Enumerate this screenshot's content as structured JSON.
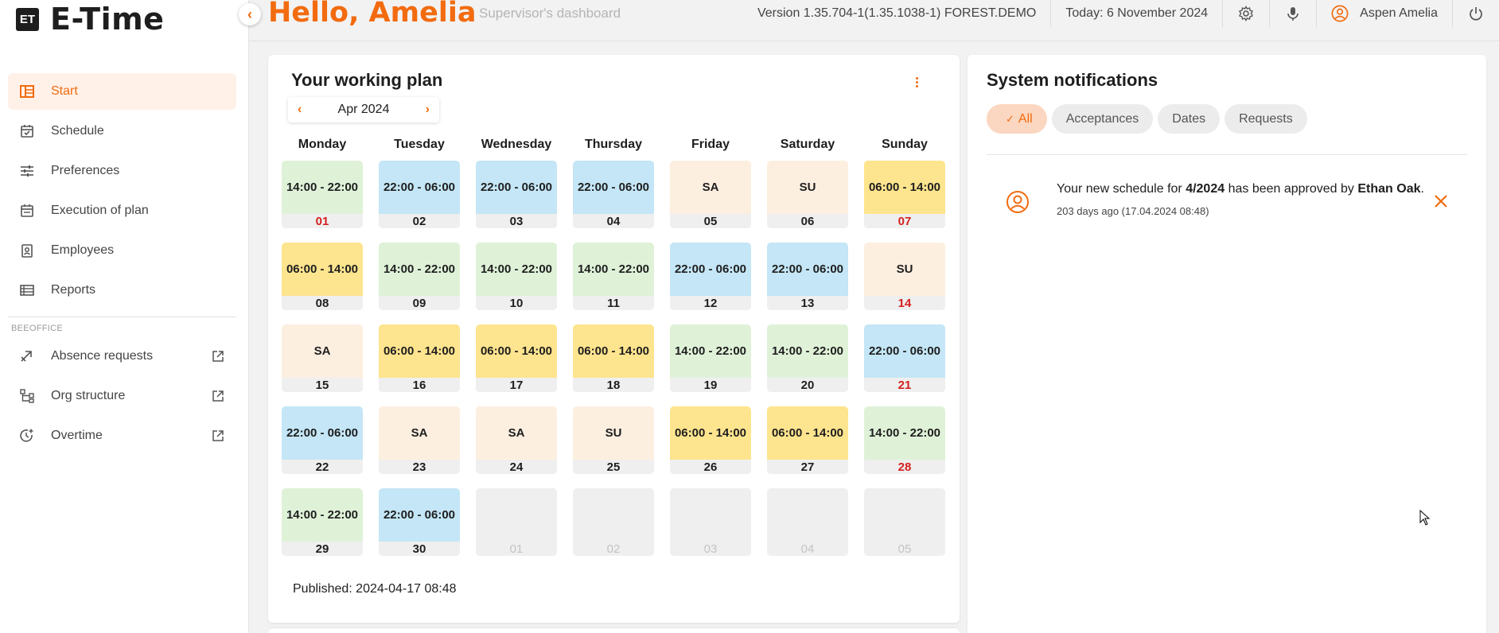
{
  "app": {
    "logo_mark": "ET",
    "logo_text": "E-Time"
  },
  "header": {
    "greeting": "Hello, Amelia",
    "subtitle": "Supervisor's dashboard",
    "version": "Version 1.35.704-1(1.35.1038-1) FOREST.DEMO",
    "today": "Today: 6 November 2024",
    "user_name": "Aspen Amelia",
    "icons": [
      "settings-icon",
      "microphone-icon",
      "user-avatar-icon",
      "power-icon"
    ]
  },
  "sidebar": {
    "collapse_icon": "chevron-left-icon",
    "items": [
      {
        "label": "Start",
        "icon": "dashboard-icon",
        "active": true
      },
      {
        "label": "Schedule",
        "icon": "calendar-check-icon"
      },
      {
        "label": "Preferences",
        "icon": "sliders-icon"
      },
      {
        "label": "Execution of plan",
        "icon": "calendar-icon"
      },
      {
        "label": "Employees",
        "icon": "badge-icon"
      },
      {
        "label": "Reports",
        "icon": "list-icon"
      }
    ],
    "section_label": "BEEOFFICE",
    "external_items": [
      {
        "label": "Absence requests",
        "icon": "plane-icon"
      },
      {
        "label": "Org structure",
        "icon": "org-chart-icon"
      },
      {
        "label": "Overtime",
        "icon": "clock-plus-icon"
      }
    ]
  },
  "plan": {
    "title": "Your working plan",
    "month": "Apr 2024",
    "prev_arrow": "‹",
    "next_arrow": "›",
    "weekdays": [
      "Monday",
      "Tuesday",
      "Wednesday",
      "Thursday",
      "Friday",
      "Saturday",
      "Sunday"
    ],
    "days": [
      {
        "num": "01",
        "shift": "14:00 - 22:00",
        "type": "green",
        "sunday": true
      },
      {
        "num": "02",
        "shift": "22:00 - 06:00",
        "type": "blue"
      },
      {
        "num": "03",
        "shift": "22:00 - 06:00",
        "type": "blue"
      },
      {
        "num": "04",
        "shift": "22:00 - 06:00",
        "type": "blue"
      },
      {
        "num": "05",
        "shift": "SA",
        "type": "peach"
      },
      {
        "num": "06",
        "shift": "SU",
        "type": "peach"
      },
      {
        "num": "07",
        "shift": "06:00 - 14:00",
        "type": "yellow",
        "sunday": true
      },
      {
        "num": "08",
        "shift": "06:00 - 14:00",
        "type": "yellow"
      },
      {
        "num": "09",
        "shift": "14:00 - 22:00",
        "type": "green"
      },
      {
        "num": "10",
        "shift": "14:00 - 22:00",
        "type": "green"
      },
      {
        "num": "11",
        "shift": "14:00 - 22:00",
        "type": "green"
      },
      {
        "num": "12",
        "shift": "22:00 - 06:00",
        "type": "blue"
      },
      {
        "num": "13",
        "shift": "22:00 - 06:00",
        "type": "blue"
      },
      {
        "num": "14",
        "shift": "SU",
        "type": "peach",
        "sunday": true
      },
      {
        "num": "15",
        "shift": "SA",
        "type": "peach"
      },
      {
        "num": "16",
        "shift": "06:00 - 14:00",
        "type": "yellow"
      },
      {
        "num": "17",
        "shift": "06:00 - 14:00",
        "type": "yellow"
      },
      {
        "num": "18",
        "shift": "06:00 - 14:00",
        "type": "yellow"
      },
      {
        "num": "19",
        "shift": "14:00 - 22:00",
        "type": "green"
      },
      {
        "num": "20",
        "shift": "14:00 - 22:00",
        "type": "green"
      },
      {
        "num": "21",
        "shift": "22:00 - 06:00",
        "type": "blue",
        "sunday": true
      },
      {
        "num": "22",
        "shift": "22:00 - 06:00",
        "type": "blue"
      },
      {
        "num": "23",
        "shift": "SA",
        "type": "peach"
      },
      {
        "num": "24",
        "shift": "SA",
        "type": "peach"
      },
      {
        "num": "25",
        "shift": "SU",
        "type": "peach"
      },
      {
        "num": "26",
        "shift": "06:00 - 14:00",
        "type": "yellow"
      },
      {
        "num": "27",
        "shift": "06:00 - 14:00",
        "type": "yellow"
      },
      {
        "num": "28",
        "shift": "14:00 - 22:00",
        "type": "green",
        "sunday": true
      },
      {
        "num": "29",
        "shift": "14:00 - 22:00",
        "type": "green"
      },
      {
        "num": "30",
        "shift": "22:00 - 06:00",
        "type": "blue"
      },
      {
        "num": "01",
        "shift": "",
        "type": "empty"
      },
      {
        "num": "02",
        "shift": "",
        "type": "empty"
      },
      {
        "num": "03",
        "shift": "",
        "type": "empty"
      },
      {
        "num": "04",
        "shift": "",
        "type": "empty"
      },
      {
        "num": "05",
        "shift": "",
        "type": "empty"
      }
    ],
    "published": "Published: 2024-04-17 08:48"
  },
  "notifications": {
    "title": "System notifications",
    "filters": [
      "All",
      "Acceptances",
      "Dates",
      "Requests"
    ],
    "active_filter": "All",
    "items": [
      {
        "text_before": "Your new schedule for ",
        "bold_period": "4/2024",
        "text_middle": " has been approved by ",
        "bold_name": "Ethan Oak",
        "text_after": ".",
        "time": "203 days ago (17.04.2024 08:48)"
      }
    ]
  },
  "colors": {
    "accent": "#f26b0f",
    "sunday_red": "#d42020",
    "shift_green": "#dff2d8",
    "shift_blue": "#c4e6f6",
    "shift_yellow": "#fde48e",
    "shift_peach": "#fdefe0"
  }
}
